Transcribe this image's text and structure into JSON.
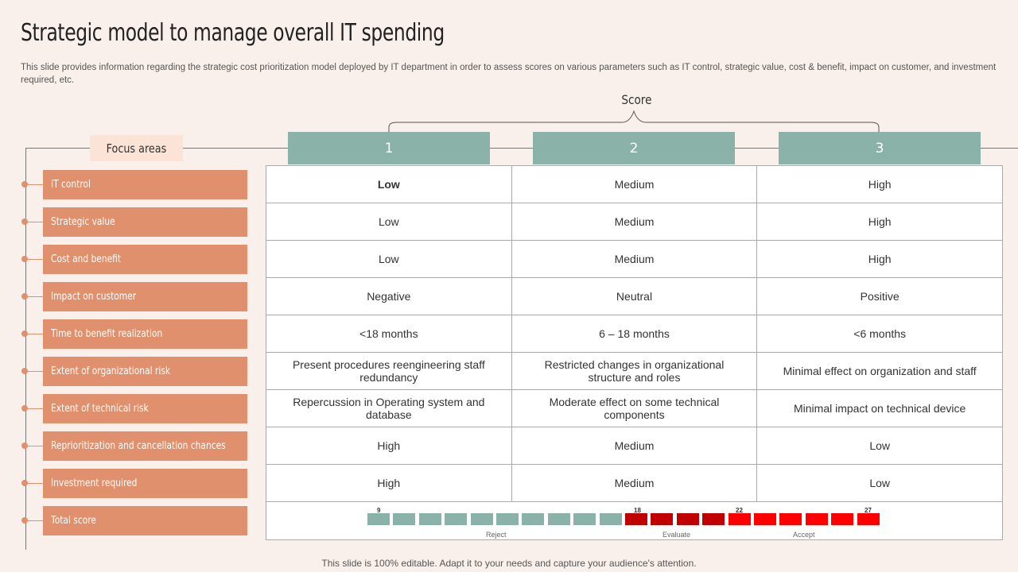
{
  "title": "Strategic model to manage overall IT spending",
  "description": "This slide provides information regarding the strategic cost prioritization model deployed by IT department in order to assess scores on various parameters such as IT control, strategic value, cost & benefit, impact on customer, and investment required, etc.",
  "score_label": "Score",
  "focus_header": "Focus areas",
  "score_headers": [
    "1",
    "2",
    "3"
  ],
  "focus_areas": [
    "IT control",
    "Strategic  value",
    "Cost and benefit",
    "Impact on customer",
    "Time to benefit  realization",
    "Extent of organizational  risk",
    "Extent of technical  risk",
    "Reprioritization  and cancellation  chances",
    "Investment  required",
    "Total score"
  ],
  "rows": [
    [
      "Low",
      "Medium",
      "High"
    ],
    [
      "Low",
      "Medium",
      "High"
    ],
    [
      "Low",
      "Medium",
      "High"
    ],
    [
      "Negative",
      "Neutral",
      "Positive"
    ],
    [
      "<18 months",
      "6 – 18 months",
      "<6 months"
    ],
    [
      "Present procedures reengineering staff redundancy",
      "Restricted changes in organizational structure and roles",
      "Minimal effect on organization and staff"
    ],
    [
      "Repercussion in Operating system and database",
      "Moderate effect on some technical components",
      "Minimal impact on technical device"
    ],
    [
      "High",
      "Medium",
      "Low"
    ],
    [
      "High",
      "Medium",
      "Low"
    ]
  ],
  "total_score_bar": {
    "markers": [
      "9",
      "18",
      "22",
      "27"
    ],
    "labels": [
      "Reject",
      "Evaluate",
      "Accept"
    ],
    "segments": 20,
    "colors": {
      "reject": "#8bb2a9",
      "evaluate": "#c00000",
      "accept": "#ff0000"
    }
  },
  "footer": "This slide is 100% editable. Adapt it to your needs and capture your audience's attention."
}
